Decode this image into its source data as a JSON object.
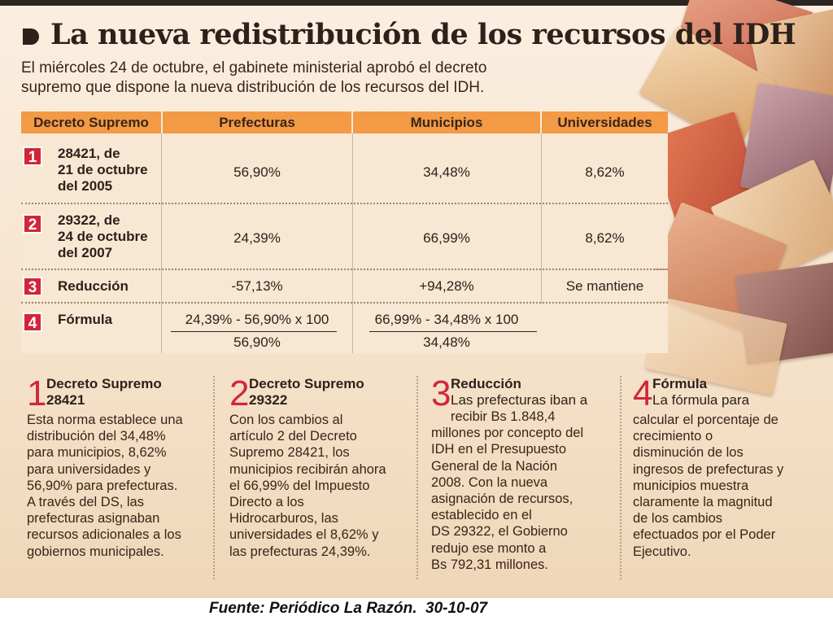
{
  "header": {
    "title": "La nueva redistribución de los recursos del IDH",
    "subtitle_line1": "El miércoles 24 de octubre, el gabinete ministerial aprobó el decreto",
    "subtitle_line2": "supremo que dispone la nueva distribución de los recursos del IDH."
  },
  "table": {
    "columns": [
      "Decreto Supremo",
      "Prefecturas",
      "Municipios",
      "Universidades"
    ],
    "rows": [
      {
        "num": "1",
        "label": "28421, de\n21 de octubre\ndel 2005",
        "prefecturas": "56,90%",
        "municipios": "34,48%",
        "universidades": "8,62%"
      },
      {
        "num": "2",
        "label": "29322, de\n24 de octubre\ndel 2007",
        "prefecturas": "24,39%",
        "municipios": "66,99%",
        "universidades": "8,62%"
      },
      {
        "num": "3",
        "label": "Reducción",
        "prefecturas": "-57,13%",
        "municipios": "+94,28%",
        "universidades": "Se mantiene"
      },
      {
        "num": "4",
        "label": "Fórmula",
        "prefecturas_num": "24,39% - 56,90% x 100",
        "prefecturas_den": "56,90%",
        "municipios_num": "66,99% - 34,48% x 100",
        "municipios_den": "34,48%"
      }
    ]
  },
  "notes": [
    {
      "num": "1",
      "head1": "Decreto Supremo",
      "head2": "28421",
      "body": [
        "Esta norma establece una",
        "distribución del 34,48%",
        "para municipios, 8,62%",
        "para universidades y",
        "56,90% para prefecturas.",
        "A través del DS, las",
        "prefecturas asignaban",
        "recursos adicionales a los",
        "gobiernos municipales."
      ]
    },
    {
      "num": "2",
      "head1": "Decreto Supremo",
      "head2": "29322",
      "body": [
        "Con los cambios al",
        "artículo 2 del Decreto",
        "Supremo 28421, los",
        "municipios recibirán ahora",
        "el 66,99% del Impuesto",
        "Directo a los",
        "Hidrocarburos, las",
        "universidades el 8,62% y",
        "las prefecturas 24,39%."
      ]
    },
    {
      "num": "3",
      "head1": "Reducción",
      "head2": "Las prefecturas iban a",
      "body": [
        "recibir Bs 1.848,4",
        "millones por concepto del",
        "IDH en el Presupuesto",
        "General de la Nación",
        "2008. Con la nueva",
        "asignación de recursos,",
        "establecido en el",
        "DS 29322, el Gobierno",
        "redujo ese monto a",
        "Bs 792,31 millones."
      ]
    },
    {
      "num": "4",
      "head1": "Fórmula",
      "head2": "La fórmula para",
      "body": [
        "calcular el porcentaje de",
        "crecimiento o",
        "disminución de los",
        "ingresos de prefecturas y",
        "municipios muestra",
        "claramente la magnitud",
        "de los cambios",
        "efectuados por el Poder",
        "Ejecutivo."
      ]
    }
  ],
  "source": "Fuente: Periódico La Razón.  30-10-07",
  "colors": {
    "accent_red": "#d1263a",
    "header_orange": "#f29a46",
    "background": "#fbefe1"
  }
}
